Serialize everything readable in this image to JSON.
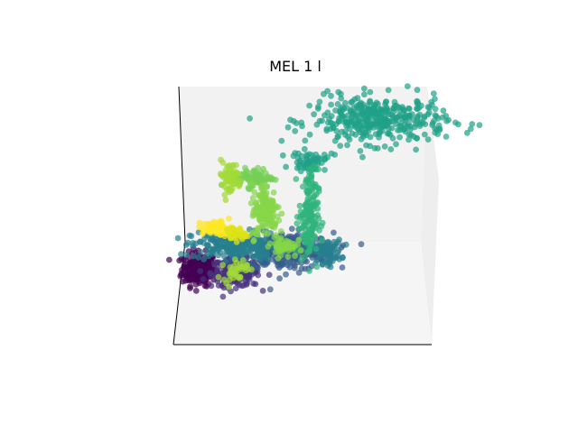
{
  "chart_data": {
    "type": "scatter",
    "projection": "3d",
    "title": "MEL 1 l",
    "xlabel": "",
    "ylabel": "",
    "zlabel": "",
    "grid": false,
    "legend": "none",
    "colormap": "viridis",
    "pane_colors": [
      "#f2f2f2",
      "#eeeeee",
      "#f5f5f5"
    ],
    "clusters": [
      {
        "center": [
          -0.85,
          -0.45
        ],
        "spread": [
          0.07,
          0.07
        ],
        "count": 220,
        "color": "#440154"
      },
      {
        "center": [
          -0.55,
          -0.48
        ],
        "spread": [
          0.1,
          0.06
        ],
        "count": 200,
        "color": "#46327e"
      },
      {
        "center": [
          -0.15,
          -0.3
        ],
        "spread": [
          0.2,
          0.08
        ],
        "count": 280,
        "color": "#365c8d"
      },
      {
        "center": [
          -0.55,
          -0.25
        ],
        "spread": [
          0.18,
          0.06
        ],
        "count": 220,
        "color": "#277f8e"
      },
      {
        "center": [
          0.2,
          -0.3
        ],
        "spread": [
          0.06,
          0.05
        ],
        "count": 80,
        "color": "#277f8e"
      },
      {
        "center": [
          0.62,
          0.82
        ],
        "spread": [
          0.28,
          0.1
        ],
        "count": 380,
        "color": "#1fa187"
      },
      {
        "center": [
          0.05,
          0.47
        ],
        "spread": [
          0.07,
          0.04
        ],
        "count": 60,
        "color": "#1fa187"
      },
      {
        "center": [
          0.05,
          0.0
        ],
        "spread": [
          0.04,
          0.2
        ],
        "count": 160,
        "color": "#2fb47c"
      },
      {
        "center": [
          -0.4,
          0.33
        ],
        "spread": [
          0.08,
          0.04
        ],
        "count": 90,
        "color": "#75d054"
      },
      {
        "center": [
          -0.3,
          0.05
        ],
        "spread": [
          0.06,
          0.12
        ],
        "count": 140,
        "color": "#86d549"
      },
      {
        "center": [
          -0.15,
          -0.25
        ],
        "spread": [
          0.05,
          0.05
        ],
        "count": 50,
        "color": "#86d549"
      },
      {
        "center": [
          -0.6,
          0.33
        ],
        "spread": [
          0.05,
          0.07
        ],
        "count": 60,
        "color": "#a2da37"
      },
      {
        "center": [
          -0.55,
          -0.45
        ],
        "spread": [
          0.05,
          0.05
        ],
        "count": 40,
        "color": "#a2da37"
      },
      {
        "center": [
          -0.7,
          -0.1
        ],
        "spread": [
          0.06,
          0.03
        ],
        "count": 90,
        "color": "#fde725"
      },
      {
        "center": [
          -0.55,
          -0.15
        ],
        "spread": [
          0.04,
          0.03
        ],
        "count": 40,
        "color": "#dde318"
      }
    ]
  }
}
